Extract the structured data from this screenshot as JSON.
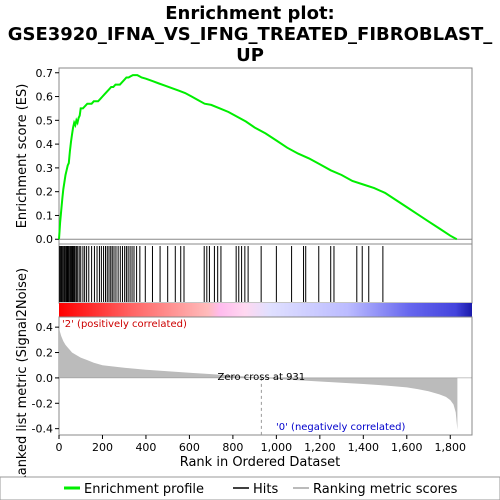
{
  "title_line1": "Enrichment plot:",
  "title_line2": "GSE3920_IFNA_VS_IFNG_TREATED_FIBROBLAST_",
  "title_line3": "UP",
  "chart_data": {
    "type": "line",
    "es_axis": {
      "label": "Enrichment score (ES)",
      "ylim": [
        -0.02,
        0.72
      ],
      "ticks": [
        "0.0",
        "0.1",
        "0.2",
        "0.3",
        "0.4",
        "0.5",
        "0.6",
        "0.7"
      ],
      "tick_values": [
        0,
        0.1,
        0.2,
        0.3,
        0.4,
        0.5,
        0.6,
        0.7
      ]
    },
    "metric_axis": {
      "label": "Ranked list metric (Signal2Noise)",
      "ylim": [
        -0.45,
        0.48
      ],
      "ticks": [
        "0.4",
        "0.2",
        "0.0",
        "-0.2",
        "-0.4"
      ],
      "tick_values": [
        0.4,
        0.2,
        0,
        -0.2,
        -0.4
      ]
    },
    "x_axis": {
      "label": "Rank in Ordered Dataset",
      "xlim": [
        0,
        1900
      ],
      "ticks": [
        "0",
        "200",
        "400",
        "600",
        "800",
        "1,000",
        "1,200",
        "1,400",
        "1,600",
        "1,800"
      ],
      "tick_values": [
        0,
        200,
        400,
        600,
        800,
        1000,
        1200,
        1400,
        1600,
        1800
      ]
    },
    "enrichment_profile": {
      "x": [
        0,
        5,
        10,
        15,
        20,
        25,
        30,
        35,
        40,
        45,
        50,
        55,
        60,
        65,
        70,
        75,
        80,
        85,
        90,
        95,
        100,
        110,
        120,
        130,
        140,
        150,
        160,
        170,
        180,
        190,
        200,
        210,
        220,
        230,
        240,
        250,
        260,
        270,
        280,
        290,
        300,
        310,
        320,
        330,
        340,
        350,
        360,
        370,
        380,
        400,
        430,
        460,
        490,
        520,
        550,
        580,
        610,
        640,
        670,
        700,
        740,
        780,
        820,
        860,
        900,
        950,
        1000,
        1050,
        1100,
        1150,
        1200,
        1250,
        1300,
        1350,
        1400,
        1450,
        1500,
        1550,
        1600,
        1650,
        1700,
        1750,
        1800,
        1830
      ],
      "y": [
        0,
        0.07,
        0.12,
        0.17,
        0.21,
        0.24,
        0.27,
        0.29,
        0.31,
        0.32,
        0.37,
        0.41,
        0.44,
        0.47,
        0.49,
        0.48,
        0.5,
        0.49,
        0.51,
        0.52,
        0.55,
        0.55,
        0.56,
        0.57,
        0.57,
        0.57,
        0.58,
        0.58,
        0.58,
        0.59,
        0.6,
        0.61,
        0.62,
        0.63,
        0.64,
        0.64,
        0.65,
        0.65,
        0.65,
        0.66,
        0.67,
        0.68,
        0.68,
        0.685,
        0.69,
        0.69,
        0.69,
        0.685,
        0.68,
        0.675,
        0.665,
        0.655,
        0.645,
        0.635,
        0.625,
        0.615,
        0.6,
        0.585,
        0.57,
        0.565,
        0.55,
        0.535,
        0.515,
        0.495,
        0.47,
        0.445,
        0.415,
        0.385,
        0.36,
        0.34,
        0.315,
        0.29,
        0.27,
        0.245,
        0.23,
        0.215,
        0.195,
        0.165,
        0.135,
        0.105,
        0.075,
        0.045,
        0.015,
        0
      ]
    },
    "hits": [
      3,
      6,
      10,
      14,
      19,
      24,
      28,
      33,
      37,
      41,
      45,
      50,
      54,
      58,
      62,
      66,
      70,
      74,
      80,
      86,
      93,
      100,
      110,
      118,
      127,
      137,
      150,
      163,
      175,
      186,
      195,
      205,
      214,
      222,
      230,
      238,
      245,
      253,
      262,
      272,
      282,
      292,
      302,
      310,
      318,
      327,
      336,
      345,
      357,
      372,
      397,
      430,
      465,
      500,
      535,
      560,
      575,
      668,
      680,
      692,
      715,
      730,
      745,
      815,
      827,
      840,
      855,
      870,
      930,
      1000,
      1070,
      1125,
      1135,
      1195,
      1250,
      1265,
      1370,
      1395,
      1425,
      1490
    ],
    "metric": {
      "x": [
        0,
        5,
        10,
        20,
        30,
        40,
        50,
        60,
        80,
        100,
        130,
        160,
        200,
        250,
        300,
        400,
        500,
        600,
        700,
        800,
        900,
        931,
        1000,
        1100,
        1200,
        1300,
        1400,
        1500,
        1600,
        1650,
        1700,
        1750,
        1780,
        1800,
        1815,
        1825,
        1833
      ],
      "y": [
        0.4,
        0.36,
        0.33,
        0.29,
        0.26,
        0.24,
        0.22,
        0.2,
        0.18,
        0.16,
        0.14,
        0.12,
        0.1,
        0.09,
        0.08,
        0.065,
        0.052,
        0.04,
        0.03,
        0.018,
        0.005,
        0,
        -0.008,
        -0.018,
        -0.028,
        -0.038,
        -0.048,
        -0.06,
        -0.075,
        -0.088,
        -0.105,
        -0.13,
        -0.15,
        -0.175,
        -0.21,
        -0.27,
        -0.41
      ]
    },
    "zero_cross": 931,
    "zero_cross_label": "Zero cross at 931",
    "pos_label": "'2' (positively correlated)",
    "neg_label": "'0' (negatively correlated)",
    "series_colors": {
      "profile": "#00ee00",
      "hits": "#000000",
      "metric": "#bbbbbb"
    },
    "legend": {
      "profile": "Enrichment profile",
      "hits": "Hits",
      "metric": "Ranking metric scores"
    }
  }
}
